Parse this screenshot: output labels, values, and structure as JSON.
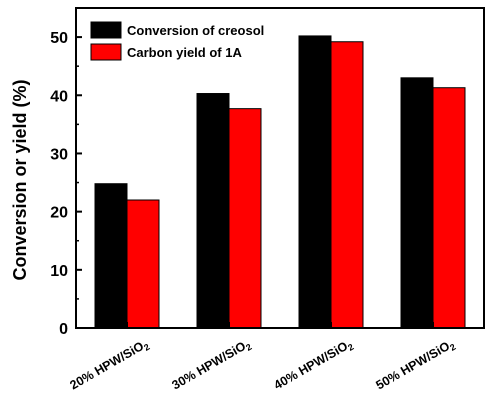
{
  "chart_data": {
    "type": "bar",
    "categories": [
      "20% HPW/SiO",
      "30% HPW/SiO",
      "40% HPW/SiO",
      "50% HPW/SiO"
    ],
    "category_subscript": "2",
    "series": [
      {
        "name": "Conversion of creosol",
        "color": "#000000",
        "values": [
          24.8,
          40.3,
          50.2,
          43.0
        ]
      },
      {
        "name": "Carbon yield of 1A",
        "color": "#ff0000",
        "values": [
          22.0,
          37.7,
          49.2,
          41.3
        ]
      }
    ],
    "ylabel": "Conversion or yield (%)",
    "xlabel": "",
    "ylim": [
      0,
      55
    ],
    "yticks": [
      0,
      10,
      20,
      30,
      40,
      50
    ],
    "legend_position": "top-left",
    "grid": false
  }
}
